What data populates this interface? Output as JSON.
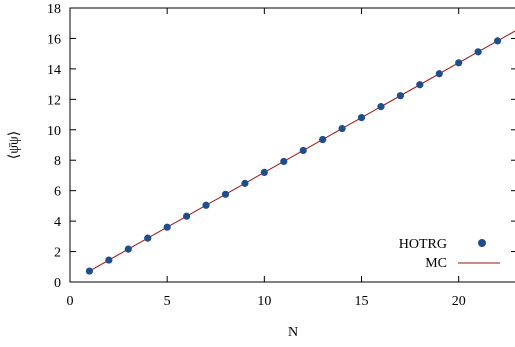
{
  "chart_data": {
    "type": "scatter",
    "xlabel": "N",
    "ylabel": "⟨ψ̄ψ⟩",
    "xlim": [
      0,
      23
    ],
    "ylim": [
      0,
      18
    ],
    "xticks": [
      0,
      5,
      10,
      15,
      20
    ],
    "yticks": [
      0,
      2,
      4,
      6,
      8,
      10,
      12,
      14,
      16,
      18
    ],
    "grid": false,
    "legend_position": "bottom-right",
    "series": [
      {
        "name": "HOTRG",
        "kind": "points",
        "color": "#1f4e8c",
        "x": [
          1,
          2,
          3,
          4,
          5,
          6,
          7,
          8,
          9,
          10,
          11,
          12,
          13,
          14,
          15,
          16,
          17,
          18,
          19,
          20,
          21,
          22
        ],
        "y": [
          0.72,
          1.44,
          2.16,
          2.88,
          3.6,
          4.32,
          5.04,
          5.76,
          6.48,
          7.2,
          7.92,
          8.64,
          9.36,
          10.08,
          10.8,
          11.52,
          12.24,
          12.96,
          13.68,
          14.4,
          15.12,
          15.84
        ]
      },
      {
        "name": "MC",
        "kind": "line",
        "color": "#a01010",
        "x": [
          1,
          23
        ],
        "y": [
          0.72,
          16.56
        ]
      }
    ]
  }
}
